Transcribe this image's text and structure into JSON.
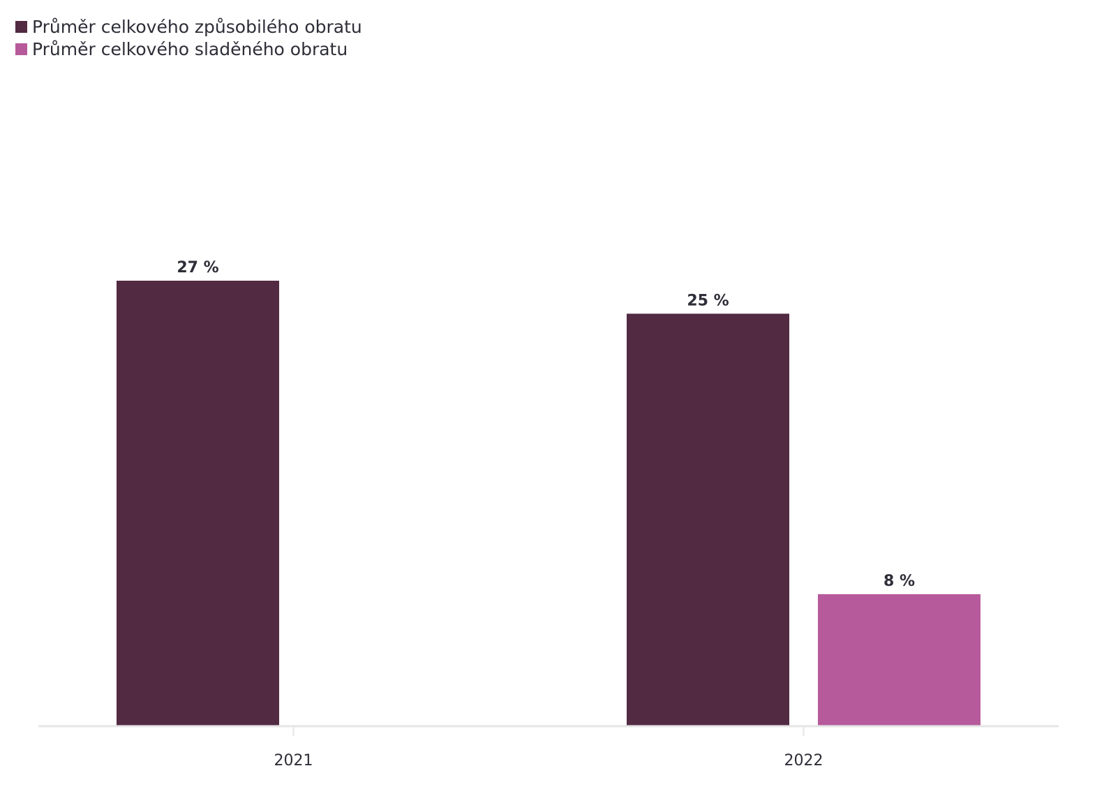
{
  "chart_data": {
    "type": "bar",
    "categories": [
      "2021",
      "2022"
    ],
    "series": [
      {
        "name": "Průměr celkového způsobilého obratu",
        "color": "#522a42",
        "values": [
          27,
          25
        ],
        "labels": [
          "27 %",
          "25 %"
        ]
      },
      {
        "name": "Průměr celkového sladěného obratu",
        "color": "#b75a9b",
        "values": [
          null,
          8
        ],
        "labels": [
          null,
          "8 %"
        ]
      }
    ],
    "ylim": [
      0,
      27
    ],
    "grid": false,
    "legend_position": "top-left",
    "axis_color": "#e6e6e6"
  }
}
